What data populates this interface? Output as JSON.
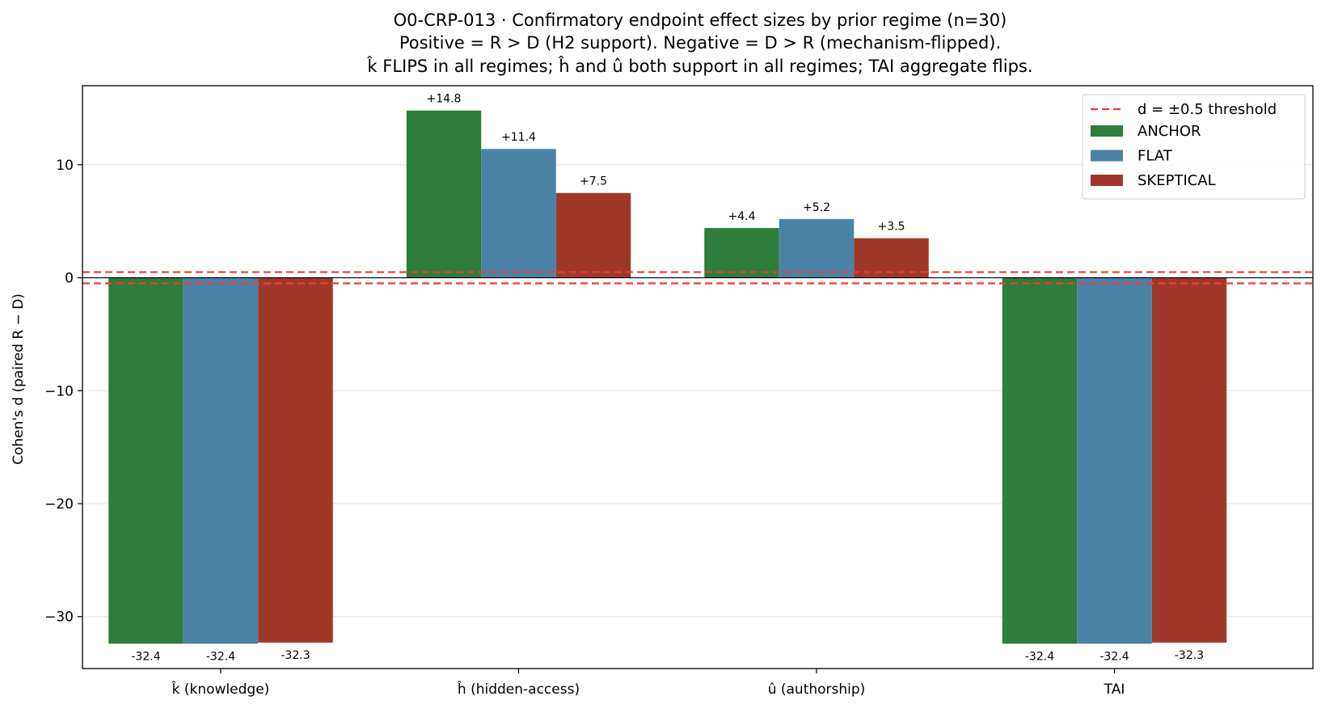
{
  "chart_data": {
    "type": "bar",
    "title_lines": [
      "O0-CRP-013 · Confirmatory endpoint effect sizes by prior regime (n=30)",
      "Positive = R > D (H2 support). Negative = D > R (mechanism-flipped).",
      "k̂ FLIPS in all regimes; ĥ and û both support in all regimes; TAI aggregate flips."
    ],
    "xlabel": "",
    "ylabel": "Cohen's d (paired R − D)",
    "categories": [
      "k̂ (knowledge)",
      "ĥ (hidden-access)",
      "û (authorship)",
      "TAI"
    ],
    "series": [
      {
        "name": "ANCHOR",
        "color": "#2e7d3a",
        "values": [
          -32.4,
          14.8,
          4.4,
          -32.4
        ],
        "labels": [
          "-32.4",
          "+14.8",
          "+4.4",
          "-32.4"
        ]
      },
      {
        "name": "FLAT",
        "color": "#4a83a6",
        "values": [
          -32.4,
          11.4,
          5.2,
          -32.4
        ],
        "labels": [
          "-32.4",
          "+11.4",
          "+5.2",
          "-32.4"
        ]
      },
      {
        "name": "SKEPTICAL",
        "color": "#a0382a",
        "values": [
          -32.3,
          7.5,
          3.5,
          -32.3
        ],
        "labels": [
          "-32.3",
          "+7.5",
          "+3.5",
          "-32.3"
        ]
      }
    ],
    "ylim": [
      -34.6,
      17.0
    ],
    "yticks": [
      -30,
      -20,
      -10,
      0,
      10
    ],
    "ytick_labels": [
      "−30",
      "−20",
      "−10",
      "0",
      "10"
    ],
    "threshold": {
      "values": [
        0.5,
        -0.5
      ],
      "label": "d = ±0.5 threshold",
      "color": "#ef3b3b"
    },
    "zero_line": true,
    "grid": "y",
    "legend_position": "upper-right"
  }
}
